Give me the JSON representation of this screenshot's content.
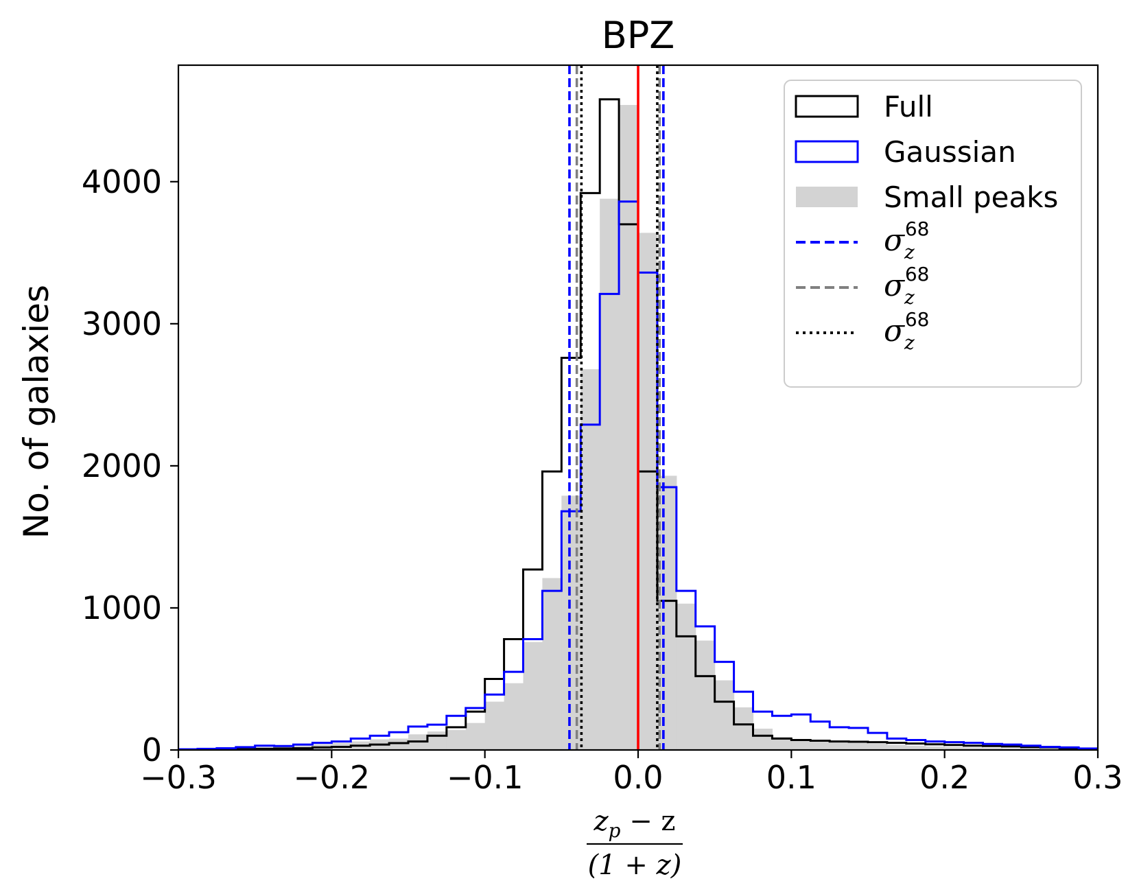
{
  "chart_data": {
    "type": "bar",
    "title": "BPZ",
    "ylabel": "No. of galaxies",
    "xlabel": {
      "numerator": "z_p − z",
      "denominator": "(1 + z)",
      "numerator_parts": [
        "z",
        "p",
        " − z"
      ],
      "denominator_text": "(1 + z)"
    },
    "xlim": [
      -0.3,
      0.3
    ],
    "ylim": [
      0,
      4820
    ],
    "x_ticks": [
      -0.3,
      -0.2,
      -0.1,
      0.0,
      0.1,
      0.2,
      0.3
    ],
    "x_tick_labels": [
      "−0.3",
      "−0.2",
      "−0.1",
      "0.0",
      "0.1",
      "0.2",
      "0.3"
    ],
    "y_ticks": [
      0,
      1000,
      2000,
      3000,
      4000
    ],
    "y_tick_labels": [
      "0",
      "1000",
      "2000",
      "3000",
      "4000"
    ],
    "grid": false,
    "legend_position": "top-right",
    "bin_edges": [
      -0.3,
      -0.2875,
      -0.275,
      -0.2625,
      -0.25,
      -0.2375,
      -0.225,
      -0.2125,
      -0.2,
      -0.1875,
      -0.175,
      -0.1625,
      -0.15,
      -0.1375,
      -0.125,
      -0.1125,
      -0.1,
      -0.0875,
      -0.075,
      -0.0625,
      -0.05,
      -0.0375,
      -0.025,
      -0.0125,
      0.0,
      0.0125,
      0.025,
      0.0375,
      0.05,
      0.0625,
      0.075,
      0.0875,
      0.1,
      0.1125,
      0.125,
      0.1375,
      0.15,
      0.1625,
      0.175,
      0.1875,
      0.2,
      0.2125,
      0.225,
      0.2375,
      0.25,
      0.2625,
      0.275,
      0.2875,
      0.3
    ],
    "series": [
      {
        "name": "Full",
        "style": "step",
        "color": "#000000",
        "values": [
          3,
          4,
          5,
          6,
          8,
          10,
          12,
          18,
          22,
          30,
          38,
          48,
          60,
          100,
          160,
          270,
          500,
          780,
          1270,
          1960,
          2760,
          3920,
          4580,
          3700,
          1960,
          1050,
          800,
          520,
          340,
          180,
          100,
          80,
          70,
          65,
          60,
          58,
          55,
          50,
          45,
          40,
          35,
          30,
          28,
          25,
          20,
          18,
          12,
          8
        ]
      },
      {
        "name": "Gaussian",
        "style": "step",
        "color": "#0000ff",
        "values": [
          5,
          8,
          12,
          20,
          30,
          28,
          38,
          50,
          60,
          80,
          100,
          125,
          165,
          178,
          240,
          295,
          390,
          550,
          780,
          1120,
          1680,
          2290,
          3210,
          3860,
          3360,
          1850,
          1120,
          870,
          620,
          410,
          270,
          240,
          250,
          200,
          160,
          155,
          120,
          80,
          70,
          60,
          55,
          50,
          42,
          38,
          30,
          22,
          18,
          10
        ]
      },
      {
        "name": "Small peaks",
        "style": "filled",
        "color": "#d3d3d3",
        "values": [
          5,
          8,
          12,
          15,
          20,
          25,
          30,
          40,
          50,
          60,
          75,
          80,
          110,
          130,
          140,
          190,
          340,
          470,
          760,
          1210,
          1790,
          2680,
          3880,
          4540,
          3640,
          1930,
          1030,
          770,
          490,
          300,
          150,
          90,
          75,
          65,
          60,
          55,
          45,
          35,
          30,
          25,
          20,
          18,
          15,
          12,
          10,
          8,
          6,
          4
        ]
      }
    ],
    "vertical_lines": [
      {
        "name": "σ_z^68",
        "style": "dashed",
        "color": "#0000ff",
        "x": [
          -0.0448,
          0.0165
        ]
      },
      {
        "name": "σ_z^68",
        "style": "dashed",
        "color": "#808080",
        "x": [
          -0.04,
          0.014
        ]
      },
      {
        "name": "σ_z^68",
        "style": "dotted",
        "color": "#000000",
        "x": [
          -0.037,
          0.0125
        ]
      },
      {
        "name": "",
        "style": "solid",
        "color": "#ff0000",
        "x": [
          0.0
        ]
      }
    ],
    "legend": [
      {
        "label": "Full",
        "sigma": false,
        "swatch": "step-black",
        "color": "#000000"
      },
      {
        "label": "Gaussian",
        "sigma": false,
        "swatch": "step-blue",
        "color": "#0000ff"
      },
      {
        "label": "Small peaks",
        "sigma": false,
        "swatch": "fill-gray",
        "color": "#d3d3d3"
      },
      {
        "label": "σ",
        "sub": "z",
        "sup": "68",
        "sigma": true,
        "swatch": "dashed-blue",
        "color": "#0000ff"
      },
      {
        "label": "σ",
        "sub": "z",
        "sup": "68",
        "sigma": true,
        "swatch": "dashed-gray",
        "color": "#808080"
      },
      {
        "label": "σ",
        "sub": "z",
        "sup": "68",
        "sigma": true,
        "swatch": "dotted-black",
        "color": "#000000"
      }
    ]
  }
}
